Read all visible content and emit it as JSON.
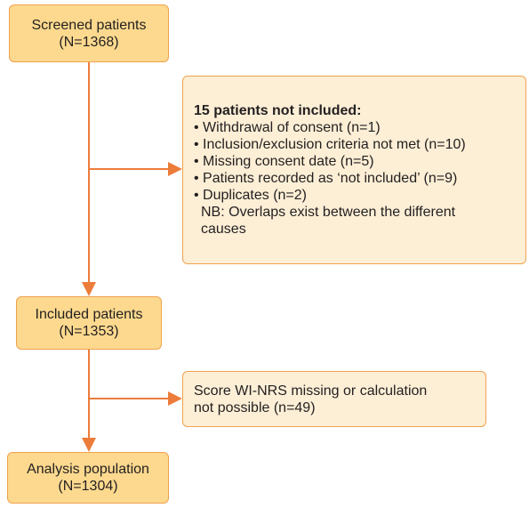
{
  "nodes": [
    {
      "lines": [
        "Screened patients",
        "(N=1368)"
      ]
    },
    {
      "lines": [
        "Included patients",
        "(N=1353)"
      ]
    },
    {
      "lines": [
        "Analysis population",
        "(N=1304)"
      ]
    }
  ],
  "exclusions": [
    {
      "title": "15 patients not included:",
      "lines": [
        "• Withdrawal of consent (n=1)",
        "• Inclusion/exclusion criteria not met (n=10)",
        "• Missing consent date (n=5)",
        "• Patients recorded as ‘not included’ (n=9)",
        "• Duplicates (n=2)",
        "NB: Overlaps exist between the different",
        "causes"
      ]
    },
    {
      "lines": [
        "Score WI-NRS missing or calculation",
        "not possible (n=49)"
      ]
    }
  ]
}
